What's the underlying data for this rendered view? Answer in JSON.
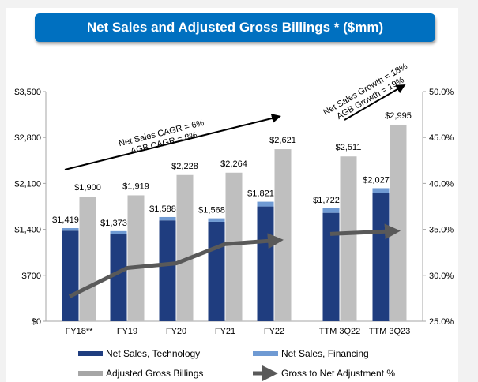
{
  "chart_data": {
    "type": "bar",
    "title": "Net Sales and Adjusted Gross Billings * ($mm)",
    "categories": [
      "FY18**",
      "FY19",
      "FY20",
      "FY21",
      "FY22",
      "TTM 3Q22",
      "TTM 3Q23"
    ],
    "series": [
      {
        "name": "Net Sales, Technology",
        "axis": "left",
        "stacked": true,
        "color": "#1f3d7f",
        "values": [
          1380,
          1327,
          1537,
          1516,
          1749,
          1652,
          1957
        ]
      },
      {
        "name": "Net Sales, Financing",
        "axis": "left",
        "stacked": true,
        "color": "#6f9ad3",
        "values": [
          39,
          46,
          51,
          52,
          72,
          70,
          70
        ]
      },
      {
        "name": "Adjusted Gross Billings",
        "axis": "left",
        "color": "#bfbfbf",
        "values": [
          1900,
          1919,
          2228,
          2264,
          2621,
          2511,
          2995
        ]
      },
      {
        "name": "Gross to Net Adjustment %",
        "axis": "right",
        "type": "line-arrow",
        "color": "#595959",
        "values": [
          27.7,
          30.8,
          31.3,
          33.4,
          33.8,
          34.5,
          34.8
        ]
      }
    ],
    "net_sales_labels": [
      "$1,419",
      "$1,373",
      "$1,588",
      "$1,568",
      "$1,821",
      "$1,722",
      "$2,027"
    ],
    "agb_labels": [
      "$1,900",
      "$1,919",
      "$2,228",
      "$2,264",
      "$2,621",
      "$2,511",
      "$2,995"
    ],
    "left_axis": {
      "ylim": [
        0,
        3500
      ],
      "ticks": [
        "$0",
        "$700",
        "$1,400",
        "$2,100",
        "$2,800",
        "$3,500"
      ]
    },
    "right_axis": {
      "ylim": [
        25,
        50
      ],
      "ticks": [
        "25.0%",
        "30.0%",
        "35.0%",
        "40.0%",
        "45.0%",
        "50.0%"
      ]
    },
    "annotations": [
      {
        "lines": [
          "Net Sales CAGR = 6%",
          "AGB CAGR = 8%"
        ]
      },
      {
        "lines": [
          "Net Sales Growth = 18%",
          "AGB Growth = 19%"
        ]
      }
    ],
    "grid": false,
    "legend": "bottom"
  }
}
